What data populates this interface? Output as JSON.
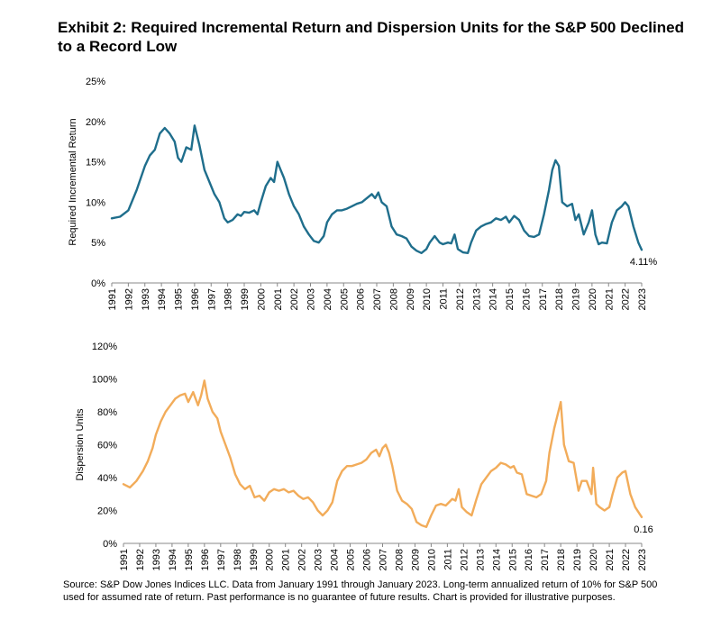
{
  "title": "Exhibit 2: Required Incremental Return and Dispersion Units for the S&P 500 Declined to a Record Low",
  "source": "Source: S&P Dow Jones Indices LLC. Data from January 1991 through January 2023. Long-term annualized return of 10% for S&P 500 used for assumed rate of return. Past performance is no guarantee of future results. Chart is provided for illustrative purposes.",
  "chart_data": [
    {
      "type": "line",
      "title": "",
      "xlabel": "",
      "ylabel": "Required Incremental Return",
      "ylim": [
        0,
        25
      ],
      "yticks": [
        "0%",
        "5%",
        "10%",
        "15%",
        "20%",
        "25%"
      ],
      "xticks": [
        "1991",
        "1992",
        "1993",
        "1994",
        "1995",
        "1996",
        "1997",
        "1998",
        "1999",
        "2000",
        "2001",
        "2002",
        "2003",
        "2004",
        "2005",
        "2006",
        "2007",
        "2008",
        "2009",
        "2010",
        "2011",
        "2012",
        "2013",
        "2014",
        "2015",
        "2016",
        "2017",
        "2018",
        "2019",
        "2020",
        "2021",
        "2022",
        "2023"
      ],
      "color": "#1f6e8c",
      "end_label": "4.11%",
      "series": [
        {
          "name": "Required Incremental Return",
          "x": [
            1991.0,
            1991.5,
            1992.0,
            1992.5,
            1993.0,
            1993.3,
            1993.6,
            1993.9,
            1994.2,
            1994.5,
            1994.8,
            1995.0,
            1995.2,
            1995.5,
            1995.8,
            1996.0,
            1996.3,
            1996.6,
            1996.9,
            1997.2,
            1997.5,
            1997.8,
            1998.0,
            1998.3,
            1998.6,
            1998.8,
            1999.0,
            1999.3,
            1999.6,
            1999.8,
            2000.0,
            2000.3,
            2000.6,
            2000.8,
            2001.0,
            2001.2,
            2001.4,
            2001.7,
            2002.0,
            2002.3,
            2002.6,
            2002.9,
            2003.2,
            2003.5,
            2003.8,
            2004.0,
            2004.3,
            2004.6,
            2004.9,
            2005.2,
            2005.5,
            2005.8,
            2006.1,
            2006.4,
            2006.7,
            2006.9,
            2007.1,
            2007.3,
            2007.6,
            2007.9,
            2008.2,
            2008.5,
            2008.8,
            2009.1,
            2009.4,
            2009.7,
            2010.0,
            2010.2,
            2010.5,
            2010.8,
            2011.0,
            2011.3,
            2011.5,
            2011.7,
            2011.9,
            2012.2,
            2012.5,
            2012.7,
            2013.0,
            2013.3,
            2013.6,
            2013.9,
            2014.2,
            2014.5,
            2014.8,
            2015.0,
            2015.3,
            2015.6,
            2015.9,
            2016.2,
            2016.5,
            2016.8,
            2017.1,
            2017.4,
            2017.6,
            2017.8,
            2018.0,
            2018.2,
            2018.5,
            2018.8,
            2019.0,
            2019.2,
            2019.5,
            2019.8,
            2020.0,
            2020.2,
            2020.4,
            2020.6,
            2020.9,
            2021.2,
            2021.5,
            2021.8,
            2022.0,
            2022.2,
            2022.5,
            2022.8,
            2023.0
          ],
          "values": [
            8.0,
            8.2,
            9.0,
            11.5,
            14.5,
            15.8,
            16.5,
            18.5,
            19.2,
            18.5,
            17.5,
            15.5,
            15.0,
            16.8,
            16.5,
            19.5,
            17.0,
            14.0,
            12.5,
            11.0,
            10.0,
            8.0,
            7.5,
            7.8,
            8.5,
            8.3,
            8.8,
            8.7,
            9.0,
            8.5,
            10.0,
            12.0,
            13.0,
            12.5,
            15.0,
            14.0,
            13.0,
            11.0,
            9.5,
            8.5,
            7.0,
            6.0,
            5.2,
            5.0,
            5.8,
            7.5,
            8.5,
            9.0,
            9.0,
            9.2,
            9.5,
            9.8,
            10.0,
            10.5,
            11.0,
            10.5,
            11.2,
            10.0,
            9.5,
            7.0,
            6.0,
            5.8,
            5.5,
            4.5,
            4.0,
            3.7,
            4.2,
            5.0,
            5.8,
            5.0,
            4.8,
            5.0,
            4.9,
            6.0,
            4.2,
            3.8,
            3.7,
            5.0,
            6.5,
            7.0,
            7.3,
            7.5,
            8.0,
            7.8,
            8.2,
            7.5,
            8.3,
            7.8,
            6.5,
            5.8,
            5.7,
            6.0,
            8.5,
            11.5,
            14.0,
            15.2,
            14.5,
            10.0,
            9.5,
            9.8,
            7.8,
            8.5,
            6.0,
            7.5,
            9.0,
            6.0,
            4.8,
            5.0,
            4.9,
            7.5,
            9.0,
            9.5,
            10.0,
            9.5,
            7.0,
            5.0,
            4.11
          ]
        }
      ]
    },
    {
      "type": "line",
      "title": "",
      "xlabel": "",
      "ylabel": "Dispersion Units",
      "ylim": [
        0,
        120
      ],
      "yticks": [
        "0%",
        "20%",
        "40%",
        "60%",
        "80%",
        "100%",
        "120%"
      ],
      "xticks": [
        "1991",
        "1992",
        "1993",
        "1994",
        "1995",
        "1996",
        "1997",
        "1998",
        "1999",
        "2000",
        "2001",
        "2002",
        "2003",
        "2004",
        "2005",
        "2006",
        "2007",
        "2008",
        "2009",
        "2010",
        "2011",
        "2012",
        "2013",
        "2014",
        "2015",
        "2016",
        "2017",
        "2018",
        "2019",
        "2020",
        "2021",
        "2022",
        "2023"
      ],
      "color": "#f2ac5a",
      "end_label": "0.16",
      "series": [
        {
          "name": "Dispersion Units",
          "x": [
            1991.0,
            1991.4,
            1991.8,
            1992.2,
            1992.5,
            1992.8,
            1993.0,
            1993.3,
            1993.6,
            1993.9,
            1994.2,
            1994.5,
            1994.8,
            1995.0,
            1995.3,
            1995.6,
            1995.8,
            1996.0,
            1996.2,
            1996.5,
            1996.8,
            1997.0,
            1997.3,
            1997.6,
            1997.9,
            1998.2,
            1998.5,
            1998.8,
            1999.1,
            1999.4,
            1999.7,
            2000.0,
            2000.3,
            2000.6,
            2000.9,
            2001.2,
            2001.5,
            2001.8,
            2002.1,
            2002.4,
            2002.7,
            2003.0,
            2003.3,
            2003.6,
            2003.9,
            2004.2,
            2004.5,
            2004.8,
            2005.1,
            2005.4,
            2005.7,
            2006.0,
            2006.3,
            2006.6,
            2006.8,
            2007.0,
            2007.2,
            2007.4,
            2007.6,
            2007.9,
            2008.2,
            2008.5,
            2008.8,
            2009.1,
            2009.4,
            2009.7,
            2010.0,
            2010.3,
            2010.6,
            2010.9,
            2011.1,
            2011.3,
            2011.5,
            2011.7,
            2011.9,
            2012.2,
            2012.5,
            2012.8,
            2013.1,
            2013.4,
            2013.7,
            2014.0,
            2014.3,
            2014.6,
            2014.9,
            2015.1,
            2015.3,
            2015.6,
            2015.9,
            2016.2,
            2016.5,
            2016.8,
            2017.1,
            2017.3,
            2017.6,
            2017.8,
            2018.0,
            2018.2,
            2018.5,
            2018.8,
            2019.1,
            2019.3,
            2019.6,
            2019.9,
            2020.0,
            2020.2,
            2020.4,
            2020.7,
            2021.0,
            2021.2,
            2021.5,
            2021.8,
            2022.0,
            2022.3,
            2022.6,
            2023.0
          ],
          "values": [
            36,
            34,
            38,
            44,
            50,
            58,
            66,
            74,
            80,
            84,
            88,
            90,
            91,
            86,
            92,
            84,
            90,
            99,
            88,
            80,
            76,
            68,
            60,
            52,
            42,
            36,
            33,
            35,
            28,
            29,
            26,
            31,
            33,
            32,
            33,
            31,
            32,
            29,
            27,
            28,
            25,
            20,
            17,
            20,
            25,
            38,
            44,
            47,
            47,
            48,
            49,
            51,
            55,
            57,
            53,
            58,
            60,
            55,
            47,
            32,
            26,
            24,
            21,
            13,
            11,
            10,
            17,
            23,
            24,
            23,
            25,
            27,
            26,
            33,
            22,
            19,
            17,
            27,
            36,
            40,
            44,
            46,
            49,
            48,
            46,
            47,
            43,
            42,
            30,
            29,
            28,
            30,
            38,
            55,
            70,
            78,
            86,
            60,
            50,
            49,
            32,
            38,
            38,
            30,
            46,
            24,
            22,
            20,
            22,
            30,
            40,
            43,
            44,
            30,
            22,
            16
          ]
        }
      ]
    }
  ]
}
